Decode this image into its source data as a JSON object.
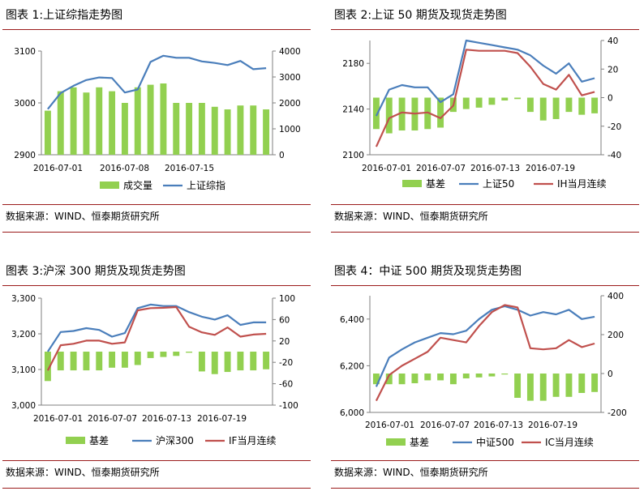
{
  "source_label": "数据来源：WIND、恒泰期货研究所",
  "colors": {
    "bar": "#92d050",
    "spot": "#4a7ebb",
    "futures": "#c0504d",
    "rule": "#9b1b1b"
  },
  "chart_data": [
    {
      "type": "bar+line",
      "title": "图表 1:上证综指走势图",
      "x_ticks": [
        "2016-07-01",
        "2016-07-08",
        "2016-07-15"
      ],
      "y_left": {
        "min": 2900,
        "max": 3100,
        "ticks": [
          "2900",
          "3000",
          "3100"
        ]
      },
      "y_right": {
        "min": 0,
        "max": 4000,
        "ticks": [
          "0",
          "1000",
          "2000",
          "3000",
          "4000"
        ]
      },
      "legend": [
        "成交量",
        "上证综指"
      ],
      "bars": {
        "name": "成交量",
        "axis": "right",
        "values": [
          1700,
          2450,
          2600,
          2400,
          2600,
          2450,
          2000,
          2600,
          2700,
          2750,
          2000,
          2000,
          2000,
          1850,
          1750,
          1900,
          1900,
          1750
        ]
      },
      "lines": [
        {
          "name": "上证综指",
          "axis": "left",
          "color": "spot",
          "values": [
            2988,
            3019,
            3033,
            3044,
            3049,
            3048,
            3020,
            3026,
            3079,
            3091,
            3087,
            3087,
            3080,
            3077,
            3073,
            3081,
            3065,
            3067
          ]
        }
      ]
    },
    {
      "type": "bar+line",
      "title": "图表 2:上证 50 期货及现货走势图",
      "x_ticks": [
        "2016-07-01",
        "2016-07-07",
        "2016-07-13",
        "2016-07-19"
      ],
      "y_left": {
        "min": 2100,
        "max": 2200,
        "ticks": [
          "2100",
          "2140",
          "2180"
        ]
      },
      "y_right": {
        "min": -40,
        "max": 40,
        "ticks": [
          "-40",
          "-20",
          "0",
          "20",
          "40"
        ]
      },
      "legend": [
        "基差",
        "上证50",
        "IH当月连续"
      ],
      "bars": {
        "name": "基差",
        "axis": "right",
        "values": [
          -22,
          -25,
          -23,
          -23,
          -22,
          -21,
          -10,
          -8,
          -7,
          -5,
          -2,
          -1,
          -10,
          -16,
          -15,
          -10,
          -12,
          -11
        ]
      },
      "lines": [
        {
          "name": "上证50",
          "axis": "left",
          "color": "spot",
          "values": [
            2134,
            2157,
            2161,
            2159,
            2159,
            2146,
            2153,
            2200,
            2198,
            2196,
            2194,
            2192,
            2187,
            2178,
            2171,
            2180,
            2164,
            2167
          ]
        },
        {
          "name": "IH当月连续",
          "axis": "left",
          "color": "futures",
          "values": [
            2107,
            2132,
            2137,
            2136,
            2137,
            2132,
            2143,
            2192,
            2191,
            2191,
            2191,
            2189,
            2177,
            2162,
            2157,
            2170,
            2152,
            2155
          ]
        }
      ]
    },
    {
      "type": "bar+line",
      "title": "图表 3:沪深 300 期货及现货走势图",
      "x_ticks": [
        "2016-07-01",
        "2016-07-07",
        "2016-07-13",
        "2016-07-19"
      ],
      "y_left": {
        "min": 3000,
        "max": 3300,
        "ticks": [
          "3,000",
          "3,100",
          "3,200",
          "3,300"
        ]
      },
      "y_right": {
        "min": -100,
        "max": 100,
        "ticks": [
          "-100",
          "-60",
          "-20",
          "20",
          "60",
          "100"
        ]
      },
      "legend": [
        "基差",
        "沪深300",
        "IF当月连续"
      ],
      "bars": {
        "name": "基差",
        "axis": "right",
        "values": [
          -55,
          -35,
          -35,
          -35,
          -35,
          -30,
          -30,
          -25,
          -12,
          -10,
          -8,
          -2,
          -37,
          -42,
          -38,
          -35,
          -35,
          -33
        ]
      },
      "lines": [
        {
          "name": "沪深300",
          "axis": "left",
          "color": "spot",
          "values": [
            3150,
            3205,
            3208,
            3216,
            3211,
            3192,
            3202,
            3272,
            3282,
            3278,
            3278,
            3261,
            3248,
            3240,
            3252,
            3225,
            3232,
            3232
          ]
        },
        {
          "name": "IF当月连续",
          "axis": "left",
          "color": "futures",
          "values": [
            3097,
            3168,
            3172,
            3181,
            3181,
            3172,
            3176,
            3266,
            3272,
            3273,
            3275,
            3220,
            3204,
            3197,
            3218,
            3192,
            3198,
            3200
          ]
        }
      ]
    },
    {
      "type": "bar+line",
      "title": "图表 4：中证 500 期货及现货走势图",
      "x_ticks": [
        "2016-07-01",
        "2016-07-07",
        "2016-07-13",
        "2016-07-19"
      ],
      "y_left": {
        "min": 6000,
        "max": 6500,
        "ticks": [
          "6,000",
          "6,200",
          "6,400"
        ]
      },
      "y_right": {
        "min": -200,
        "max": 400,
        "ticks": [
          "-200",
          "0",
          "200",
          "400"
        ]
      },
      "legend": [
        "基差",
        "中证500",
        "IC当月连续"
      ],
      "bars": {
        "name": "基差",
        "axis": "right",
        "values": [
          -55,
          -55,
          -55,
          -50,
          -35,
          -35,
          -55,
          -25,
          -20,
          -15,
          -5,
          -125,
          -140,
          -140,
          -120,
          -120,
          -100,
          -95
        ]
      },
      "lines": [
        {
          "name": "中证500",
          "axis": "left",
          "color": "spot",
          "values": [
            6110,
            6235,
            6270,
            6300,
            6320,
            6340,
            6335,
            6350,
            6400,
            6440,
            6455,
            6440,
            6415,
            6430,
            6420,
            6440,
            6400,
            6410
          ]
        },
        {
          "name": "IC当月连续",
          "axis": "left",
          "color": "futures",
          "values": [
            6050,
            6160,
            6200,
            6230,
            6260,
            6320,
            6310,
            6300,
            6370,
            6430,
            6460,
            6450,
            6275,
            6270,
            6275,
            6310,
            6280,
            6295
          ]
        }
      ]
    }
  ]
}
